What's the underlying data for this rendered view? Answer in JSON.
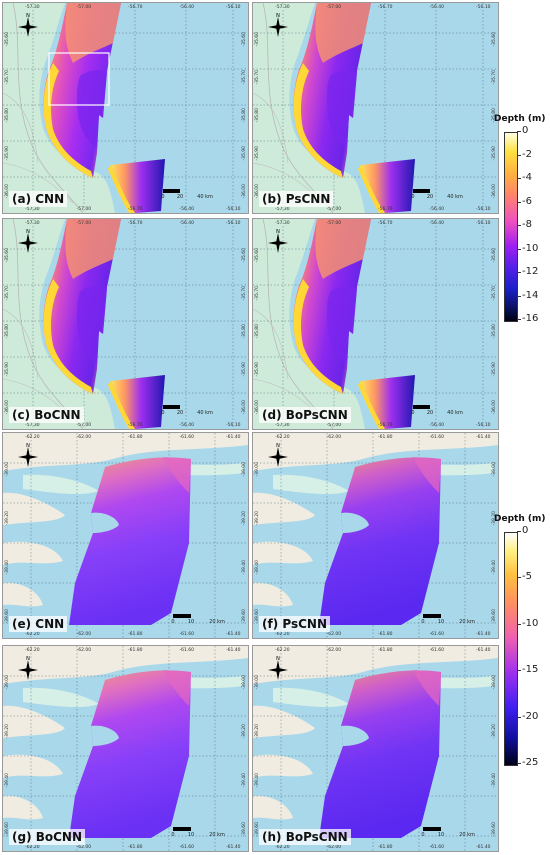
{
  "colorbar_top": {
    "title": "Depth (m)",
    "ticks": [
      "0",
      "-2",
      "-4",
      "-6",
      "-8",
      "-10",
      "-12",
      "-14",
      "-16"
    ]
  },
  "colorbar_bottom": {
    "title": "Depth (m)",
    "ticks": [
      "0",
      "-5",
      "-10",
      "-15",
      "-20",
      "-25"
    ]
  },
  "top_lon_top": [
    "-57.30",
    "-57.00",
    "-56.70",
    "-56.40",
    "-56.10"
  ],
  "top_lon_bottom": [
    "-57.30",
    "-57.00",
    "-56.70",
    "-56.40",
    "-56.10"
  ],
  "top_lat": [
    "-35.60",
    "-35.70",
    "-35.80",
    "-35.90",
    "-36.00"
  ],
  "bot_lon_top": [
    "-62.20",
    "-62.00",
    "-61.80",
    "-61.60",
    "-61.40"
  ],
  "bot_lon_bottom": [
    "-62.20",
    "-62.00",
    "-61.80",
    "-61.60",
    "-61.40"
  ],
  "bot_lat": [
    "-39.00",
    "-39.20",
    "-39.40",
    "-39.60"
  ],
  "scale_top": {
    "zero": "0",
    "mid": "20",
    "end": "40 km"
  },
  "scale_bot": {
    "zero": "0",
    "mid": "10",
    "end": "20 km"
  },
  "panels": [
    {
      "label": "(a) CNN"
    },
    {
      "label": "(b) PsCNN"
    },
    {
      "label": "(c) BoCNN"
    },
    {
      "label": "(d) BoPsCNN"
    },
    {
      "label": "(e) CNN"
    },
    {
      "label": "(f) PsCNN"
    },
    {
      "label": "(g) BoCNN"
    },
    {
      "label": "(h) BoPsCNN"
    }
  ],
  "compass_letter": "N",
  "colors": {
    "sea": "#a9d8ea",
    "land_top": "#cdebd8",
    "land_bottom": "#f1ece1",
    "tidal": "#d6efe7"
  }
}
